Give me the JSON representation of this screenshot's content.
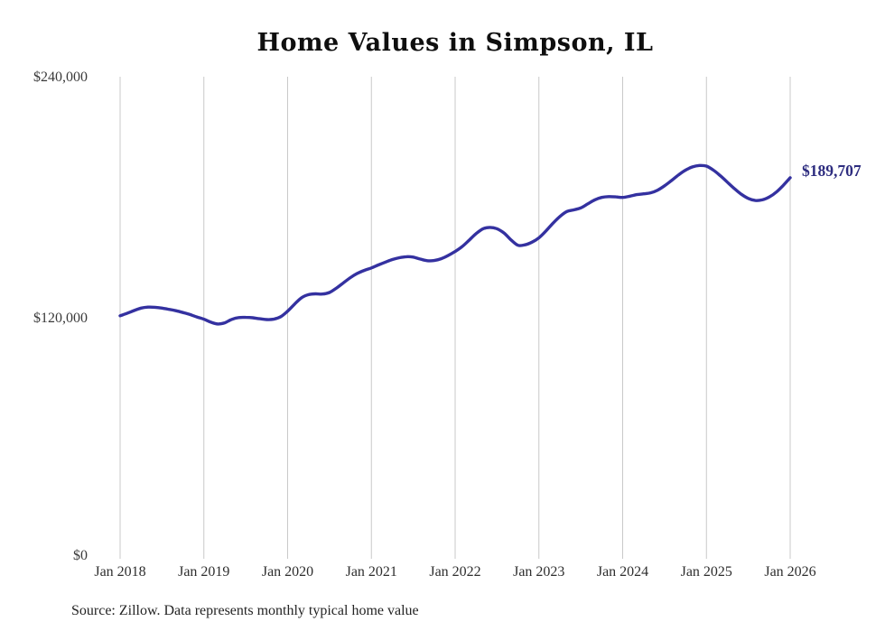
{
  "title": "Home Values in Simpson, IL",
  "source_note": "Source: Zillow. Data represents monthly typical home value",
  "end_label": "$189,707",
  "colors": {
    "line": "#3431a0",
    "end_label": "#2d2c7f",
    "gridline": "#c9c9c9",
    "axis_text": "#3a3a3a",
    "title_text": "#0f0f0f"
  },
  "chart_data": {
    "type": "line",
    "title": "Home Values in Simpson, IL",
    "frequency": "monthly",
    "x_start": "Jan 2018",
    "x_end": "Jan 2026",
    "xlabel": "",
    "ylabel": "",
    "ylim": [
      0,
      240000
    ],
    "grid": "vertical-only",
    "legend_position": "none",
    "x_tick_labels": [
      "Jan 2018",
      "Jan 2019",
      "Jan 2020",
      "Jan 2021",
      "Jan 2022",
      "Jan 2023",
      "Jan 2024",
      "Jan 2025",
      "Jan 2026"
    ],
    "y_ticks": [
      {
        "label": "$0",
        "value": 0
      },
      {
        "label": "$120,000",
        "value": 120000
      },
      {
        "label": "$240,000",
        "value": 240000
      }
    ],
    "end_label": "$189,707",
    "end_value": 189707,
    "source": "Source: Zillow. Data represents monthly typical home value",
    "series": [
      {
        "name": "Typical home value",
        "values": [
          121000,
          122200,
          123600,
          124800,
          125300,
          125200,
          124800,
          124200,
          123500,
          122600,
          121600,
          120400,
          119300,
          117800,
          116900,
          117500,
          119200,
          120100,
          120200,
          120000,
          119500,
          119100,
          119300,
          120500,
          123300,
          126800,
          130000,
          131500,
          131900,
          131800,
          132600,
          134800,
          137400,
          140000,
          142100,
          143600,
          144800,
          146300,
          147700,
          149000,
          149900,
          150400,
          150200,
          149200,
          148400,
          148500,
          149400,
          151000,
          153000,
          155400,
          158600,
          161900,
          164300,
          165000,
          164300,
          162200,
          158800,
          156100,
          156300,
          157600,
          159800,
          163200,
          167000,
          170400,
          172900,
          173700,
          174700,
          176700,
          178700,
          179900,
          180300,
          180200,
          179900,
          180500,
          181300,
          181700,
          182200,
          183500,
          185700,
          188300,
          191100,
          193500,
          195100,
          195800,
          195500,
          193500,
          190700,
          187500,
          184300,
          181500,
          179400,
          178400,
          178700,
          180100,
          182500,
          185900,
          189707
        ]
      }
    ]
  }
}
